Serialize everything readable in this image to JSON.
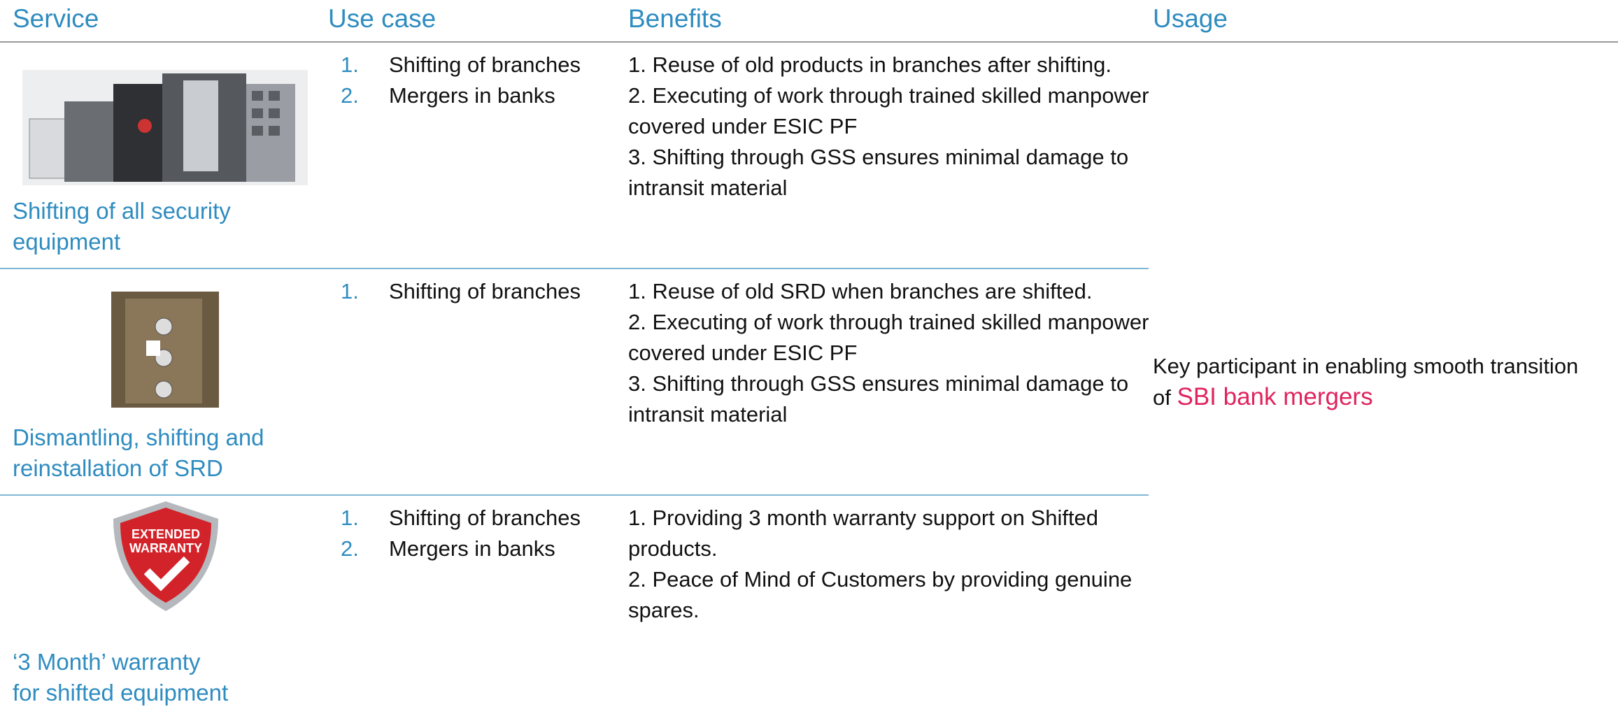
{
  "header": {
    "columns": [
      "Service",
      "Use case",
      "Benefits",
      "Usage"
    ]
  },
  "rows": [
    {
      "service_caption": [
        "Shifting of all security",
        "equipment"
      ],
      "use_cases": [
        {
          "marker": "1.",
          "text": "Shifting of branches"
        },
        {
          "marker": "2.",
          "text": "Mergers in banks"
        }
      ],
      "benefits": [
        "1. Reuse of old products in branches after shifting.",
        "2. Executing of work through trained skilled manpower covered under ESIC PF",
        "3. Shifting through GSS ensures minimal damage to intransit material"
      ]
    },
    {
      "service_caption": [
        "Dismantling, shifting and",
        "reinstallation of SRD"
      ],
      "use_cases": [
        {
          "marker": "1.",
          "text": "Shifting of branches"
        }
      ],
      "benefits": [
        "1. Reuse of old SRD when branches are shifted.",
        "2. Executing of work through trained skilled manpower covered under ESIC PF",
        "3. Shifting through GSS ensures minimal damage to intransit material"
      ]
    },
    {
      "badge_text": [
        "EXTENDED",
        "WARRANTY"
      ],
      "service_caption": [
        "‘3 Month’ warranty",
        "for shifted equipment"
      ],
      "use_cases": [
        {
          "marker": "1.",
          "text": "Shifting of branches"
        },
        {
          "marker": "2.",
          "text": "Mergers in banks"
        }
      ],
      "benefits": [
        "1. Providing 3 month warranty support on Shifted products.",
        "2. Peace of Mind of Customers by providing genuine spares."
      ]
    }
  ],
  "usage": {
    "text": "Key participant in enabling smooth transition of ",
    "highlight": "SBI bank mergers"
  }
}
